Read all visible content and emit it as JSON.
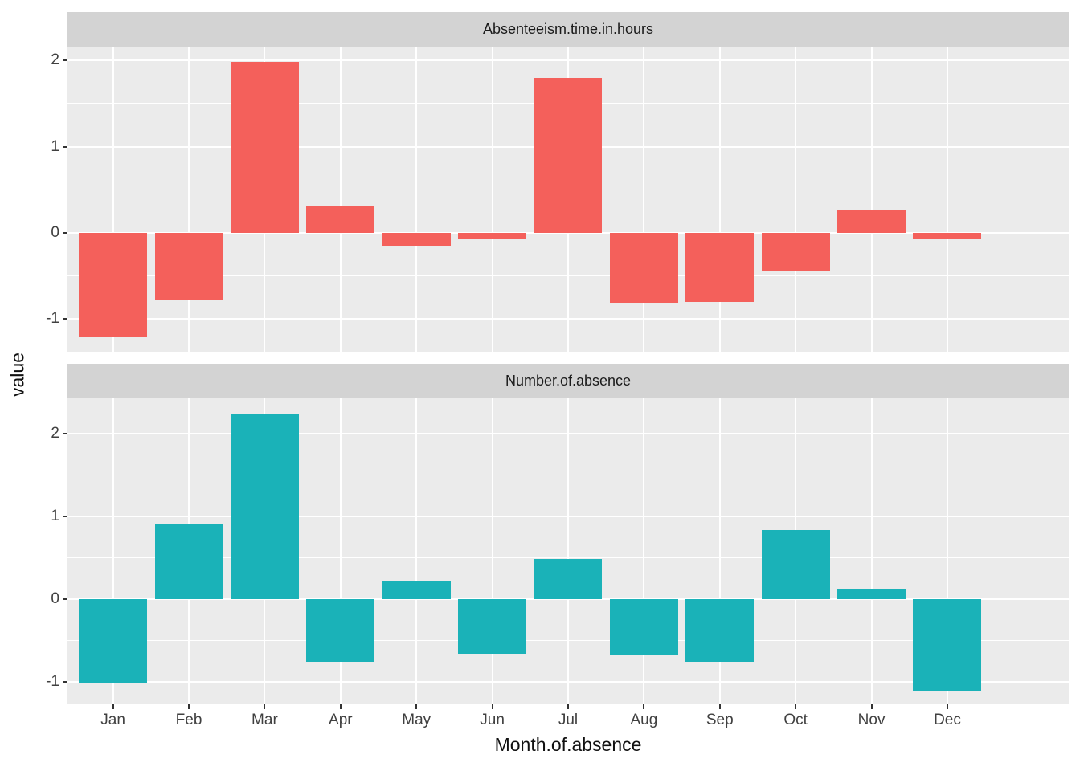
{
  "chart_data": {
    "type": "bar",
    "xlabel": "Month.of.absence",
    "ylabel": "value",
    "categories": [
      "Jan",
      "Feb",
      "Mar",
      "Apr",
      "May",
      "Jun",
      "Jul",
      "Aug",
      "Sep",
      "Oct",
      "Nov",
      "Dec"
    ],
    "facets": [
      {
        "label": "Absenteeism.time.in.hours",
        "color": "#F4605B",
        "ylim": [
          -1.38,
          2.16
        ],
        "yticks": [
          2,
          1,
          0,
          -1
        ],
        "minor_ticks": [
          1.5,
          0.5,
          -0.5
        ],
        "values": [
          -1.21,
          -0.78,
          1.98,
          0.32,
          -0.15,
          -0.08,
          1.8,
          -0.81,
          -0.8,
          -0.45,
          0.27,
          -0.07
        ]
      },
      {
        "label": "Number.of.absence",
        "color": "#1AB2B8",
        "ylim": [
          -1.26,
          2.43
        ],
        "yticks": [
          2,
          1,
          0,
          -1
        ],
        "minor_ticks": [
          1.5,
          0.5,
          -0.5
        ],
        "values": [
          -1.02,
          0.92,
          2.24,
          -0.76,
          0.22,
          -0.66,
          0.49,
          -0.67,
          -0.76,
          0.84,
          0.13,
          -1.11
        ]
      }
    ],
    "bar_rel_width": 0.9,
    "x_expand": 0.6,
    "grid": true,
    "legend_position": "none",
    "panel_bg": "#EBEBEB",
    "grid_color": "#FFFFFF",
    "strip_bg": "#D3D3D3",
    "axis_tick_color": "#333333",
    "axis_text_color": "#404040",
    "axis_title_color": "#111111"
  }
}
